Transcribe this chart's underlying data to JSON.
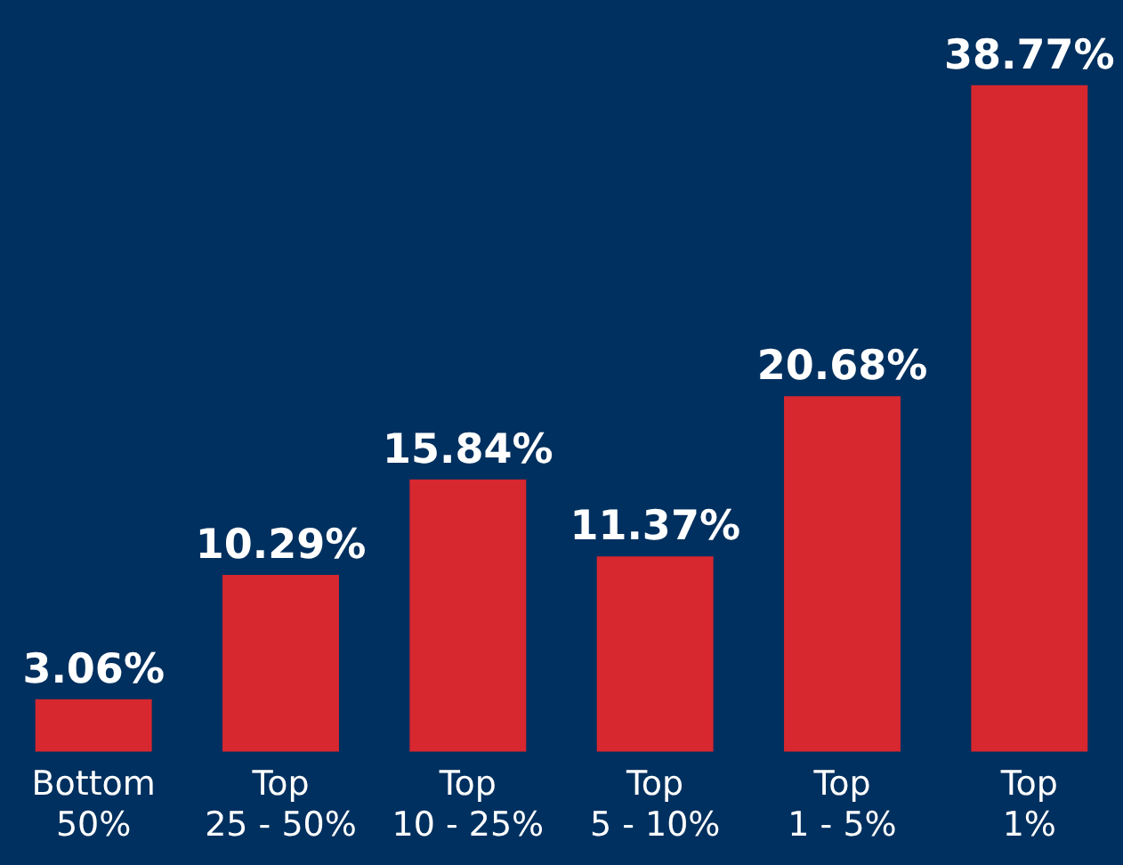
{
  "chart_data": {
    "type": "bar",
    "categories": [
      "Bottom\n50%",
      "Top\n25 - 50%",
      "Top\n10 - 25%",
      "Top\n5 - 10%",
      "Top\n1 - 5%",
      "Top\n1%"
    ],
    "values": [
      3.06,
      10.29,
      15.84,
      11.37,
      20.68,
      38.77
    ],
    "value_labels": [
      "3.06%",
      "10.29%",
      "15.84%",
      "11.37%",
      "20.68%",
      "38.77%"
    ],
    "color": "#d7272f"
  }
}
